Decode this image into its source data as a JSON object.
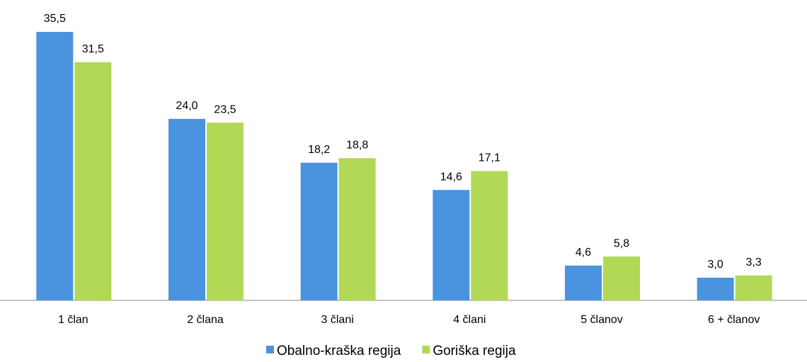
{
  "chart_data": {
    "type": "bar",
    "categories": [
      "1 član",
      "2 člana",
      "3 člani",
      "4 člani",
      "5 članov",
      "6 + članov"
    ],
    "series": [
      {
        "name": "Obalno-kraška regija",
        "color": "#4a94df",
        "values": [
          35.5,
          24.0,
          18.2,
          14.6,
          4.6,
          3.0
        ],
        "value_labels": [
          "35,5",
          "24,0",
          "18,2",
          "14,6",
          "4,6",
          "3,0"
        ]
      },
      {
        "name": "Goriška regija",
        "color": "#b1d955",
        "values": [
          31.5,
          23.5,
          18.8,
          17.1,
          5.8,
          3.3
        ],
        "value_labels": [
          "31,5",
          "23,5",
          "18,8",
          "17,1",
          "5,8",
          "3,3"
        ]
      }
    ],
    "legend": "bottom"
  }
}
